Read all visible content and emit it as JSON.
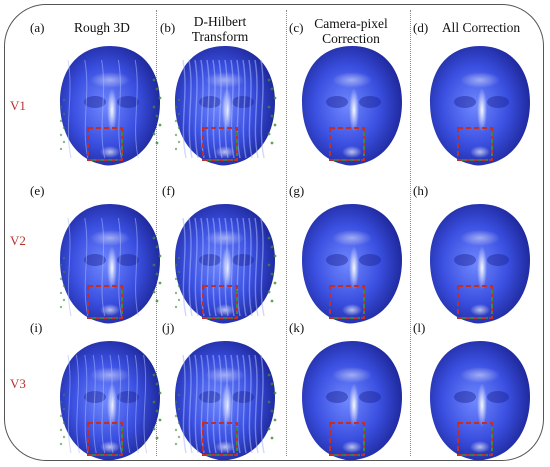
{
  "columns": [
    {
      "label": "(a)",
      "title_lines": [
        "Rough 3D"
      ]
    },
    {
      "label": "(b)",
      "title_lines": [
        "D-Hilbert",
        "Transform"
      ]
    },
    {
      "label": "(c)",
      "title_lines": [
        "Camera-pixel",
        "Correction"
      ]
    },
    {
      "label": "(d)",
      "title_lines": [
        "All Correction"
      ]
    }
  ],
  "rows": [
    {
      "label": "V1",
      "panel_labels": [
        "(a)",
        "(b)",
        "(c)",
        "(d)"
      ]
    },
    {
      "label": "V2",
      "panel_labels": [
        "(e)",
        "(f)",
        "(g)",
        "(h)"
      ]
    },
    {
      "label": "V3",
      "panel_labels": [
        "(i)",
        "(j)",
        "(k)",
        "(l)"
      ]
    }
  ],
  "colors": {
    "face_light": "#6f88ff",
    "face_mid": "#3a4fe0",
    "face_dark": "#1a2290",
    "box_red": "#c0302a",
    "box_green": "#3c8a3a",
    "label_red": "#b3332b"
  }
}
